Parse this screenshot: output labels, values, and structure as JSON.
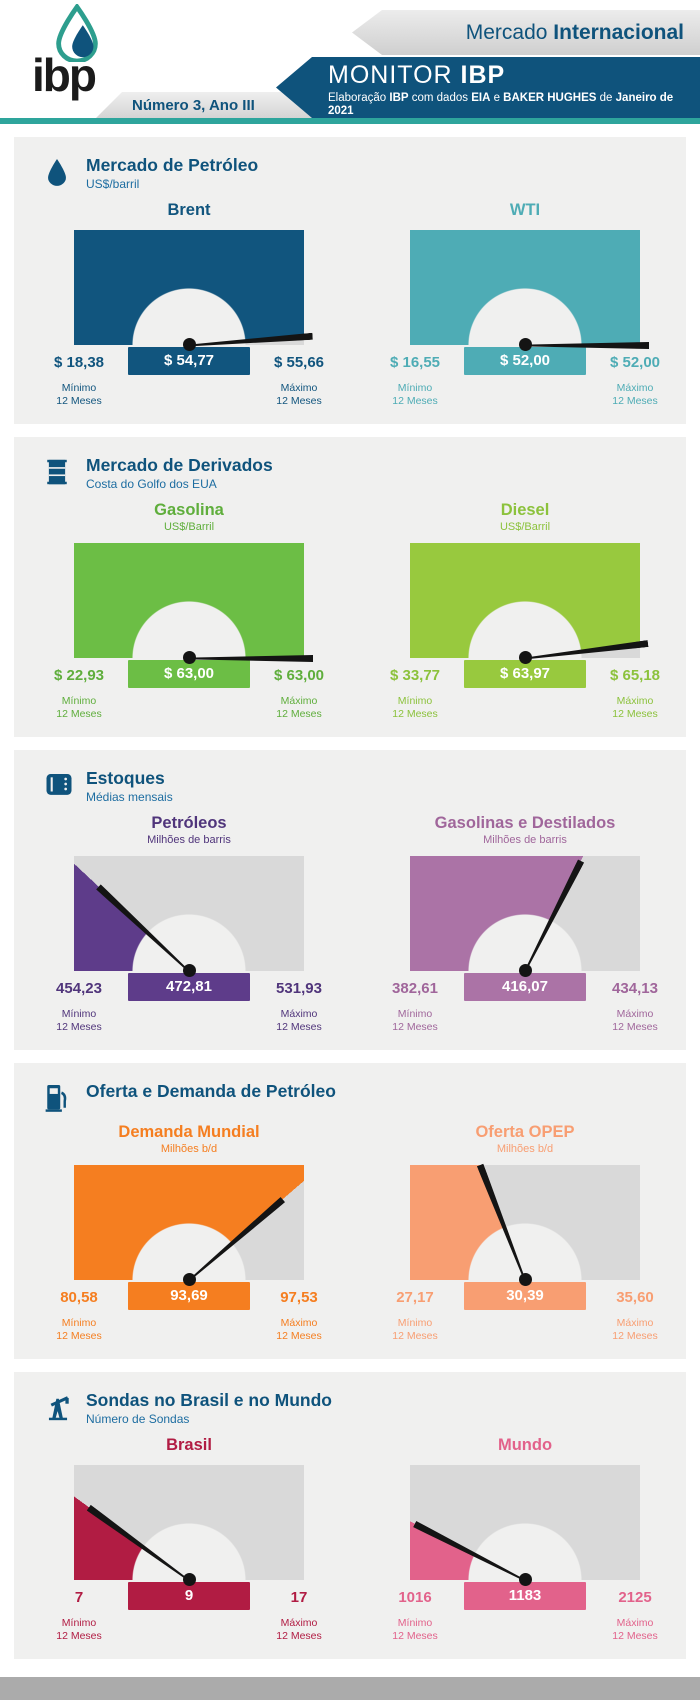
{
  "header": {
    "brand": "ibp",
    "market": {
      "regular": "Mercado ",
      "bold": "Internacional"
    },
    "monitor": {
      "regular": "MONITOR ",
      "bold": "IBP"
    },
    "elab": {
      "e1": "Elaboração ",
      "e2": "IBP",
      "e3": " com dados ",
      "e4": "EIA",
      "e5": " e ",
      "e6": "BAKER HUGHES",
      "e7": " de ",
      "e8": "Janeiro de 2021"
    },
    "issue": "Número 3, Ano III"
  },
  "labels": {
    "min1": "Mínimo",
    "min2": "12 Meses",
    "max1": "Máximo",
    "max2": "12 Meses"
  },
  "colors": {
    "header_blue": "#0f537c",
    "teal_bar": "#2ea59c",
    "card_bg": "#f0f0ef",
    "gauge_rest_gray": "#d9d9d9",
    "needle": "#141414",
    "footer_gray": "#ababab"
  },
  "sections": [
    {
      "title": "Mercado de Petróleo",
      "subtitle": "US$/barril",
      "icon": "drop-icon",
      "gauges": [
        {
          "name": "Brent",
          "unit": "",
          "min_label": "$ 18,38",
          "value_label": "$ 54,77",
          "max_label": "$ 55,66",
          "nmin": 18.38,
          "nvalue": 54.77,
          "nmax": 55.66,
          "color": "#11557e",
          "text_color": "#11557e"
        },
        {
          "name": "WTI",
          "unit": "",
          "min_label": "$ 16,55",
          "value_label": "$ 52,00",
          "max_label": "$ 52,00",
          "nmin": 16.55,
          "nvalue": 52.0,
          "nmax": 52.0,
          "color": "#4eacb5",
          "text_color": "#4eacb5"
        }
      ]
    },
    {
      "title": "Mercado de Derivados",
      "subtitle": "Costa do Golfo dos EUA",
      "icon": "barrel-icon",
      "gauges": [
        {
          "name": "Gasolina",
          "unit": "US$/Barril",
          "min_label": "$ 22,93",
          "value_label": "$ 63,00",
          "max_label": "$ 63,00",
          "nmin": 22.93,
          "nvalue": 63.0,
          "nmax": 63.0,
          "color": "#6cbe45",
          "text_color": "#5fae3c"
        },
        {
          "name": "Diesel",
          "unit": "US$/Barril",
          "min_label": "$ 33,77",
          "value_label": "$ 63,97",
          "max_label": "$ 65,18",
          "nmin": 33.77,
          "nvalue": 63.97,
          "nmax": 65.18,
          "color": "#98c93e",
          "text_color": "#8cc23c"
        }
      ]
    },
    {
      "title": "Estoques",
      "subtitle": "Médias mensais",
      "icon": "tank-icon",
      "gauges": [
        {
          "name": "Petróleos",
          "unit": "Milhões de barris",
          "min_label": "454,23",
          "value_label": "472,81",
          "max_label": "531,93",
          "nmin": 454.23,
          "nvalue": 472.81,
          "nmax": 531.93,
          "color": "#5e3c8a",
          "text_color": "#50357b"
        },
        {
          "name": "Gasolinas e Destilados",
          "unit": "Milhões de barris",
          "min_label": "382,61",
          "value_label": "416,07",
          "max_label": "434,13",
          "nmin": 382.61,
          "nvalue": 416.07,
          "nmax": 434.13,
          "color": "#ab73a6",
          "text_color": "#a0669b"
        }
      ]
    },
    {
      "title": "Oferta e Demanda de Petróleo",
      "subtitle": "",
      "icon": "pump-icon",
      "gauges": [
        {
          "name": "Demanda Mundial",
          "unit": "Milhões b/d",
          "min_label": "80,58",
          "value_label": "93,69",
          "max_label": "97,53",
          "nmin": 80.58,
          "nvalue": 93.69,
          "nmax": 97.53,
          "color": "#f57e20",
          "text_color": "#f57e20"
        },
        {
          "name": "Oferta OPEP",
          "unit": "Milhões b/d",
          "min_label": "27,17",
          "value_label": "30,39",
          "max_label": "35,60",
          "nmin": 27.17,
          "nvalue": 30.39,
          "nmax": 35.6,
          "color": "#f89e72",
          "text_color": "#f89e72"
        }
      ]
    },
    {
      "title": "Sondas no Brasil e no Mundo",
      "subtitle": "Número de Sondas",
      "icon": "derrick-icon",
      "gauges": [
        {
          "name": "Brasil",
          "unit": "",
          "min_label": "7",
          "value_label": "9",
          "max_label": "17",
          "nmin": 7,
          "nvalue": 9,
          "nmax": 17,
          "color": "#b11c43",
          "text_color": "#b11c43"
        },
        {
          "name": "Mundo",
          "unit": "",
          "min_label": "1016",
          "value_label": "1183",
          "max_label": "2125",
          "nmin": 1016,
          "nvalue": 1183,
          "nmax": 2125,
          "color": "#e2628b",
          "text_color": "#e2628b"
        }
      ]
    }
  ],
  "chart_data": [
    {
      "type": "gauge",
      "title": "Brent",
      "section": "Mercado de Petróleo",
      "unit": "US$/barril",
      "min": 18.38,
      "value": 54.77,
      "max": 55.66,
      "color": "#11557e"
    },
    {
      "type": "gauge",
      "title": "WTI",
      "section": "Mercado de Petróleo",
      "unit": "US$/barril",
      "min": 16.55,
      "value": 52.0,
      "max": 52.0,
      "color": "#4eacb5"
    },
    {
      "type": "gauge",
      "title": "Gasolina",
      "section": "Mercado de Derivados (Costa do Golfo dos EUA)",
      "unit": "US$/Barril",
      "min": 22.93,
      "value": 63.0,
      "max": 63.0,
      "color": "#6cbe45"
    },
    {
      "type": "gauge",
      "title": "Diesel",
      "section": "Mercado de Derivados (Costa do Golfo dos EUA)",
      "unit": "US$/Barril",
      "min": 33.77,
      "value": 63.97,
      "max": 65.18,
      "color": "#98c93e"
    },
    {
      "type": "gauge",
      "title": "Petróleos",
      "section": "Estoques (Médias mensais)",
      "unit": "Milhões de barris",
      "min": 454.23,
      "value": 472.81,
      "max": 531.93,
      "color": "#5e3c8a"
    },
    {
      "type": "gauge",
      "title": "Gasolinas e Destilados",
      "section": "Estoques (Médias mensais)",
      "unit": "Milhões de barris",
      "min": 382.61,
      "value": 416.07,
      "max": 434.13,
      "color": "#ab73a6"
    },
    {
      "type": "gauge",
      "title": "Demanda Mundial",
      "section": "Oferta e Demanda de Petróleo",
      "unit": "Milhões b/d",
      "min": 80.58,
      "value": 93.69,
      "max": 97.53,
      "color": "#f57e20"
    },
    {
      "type": "gauge",
      "title": "Oferta OPEP",
      "section": "Oferta e Demanda de Petróleo",
      "unit": "Milhões b/d",
      "min": 27.17,
      "value": 30.39,
      "max": 35.6,
      "color": "#f89e72"
    },
    {
      "type": "gauge",
      "title": "Brasil",
      "section": "Sondas no Brasil e no Mundo",
      "unit": "Número de Sondas",
      "min": 7,
      "value": 9,
      "max": 17,
      "color": "#b11c43"
    },
    {
      "type": "gauge",
      "title": "Mundo",
      "section": "Sondas no Brasil e no Mundo",
      "unit": "Número de Sondas",
      "min": 1016,
      "value": 1183,
      "max": 2125,
      "color": "#e2628b"
    }
  ]
}
